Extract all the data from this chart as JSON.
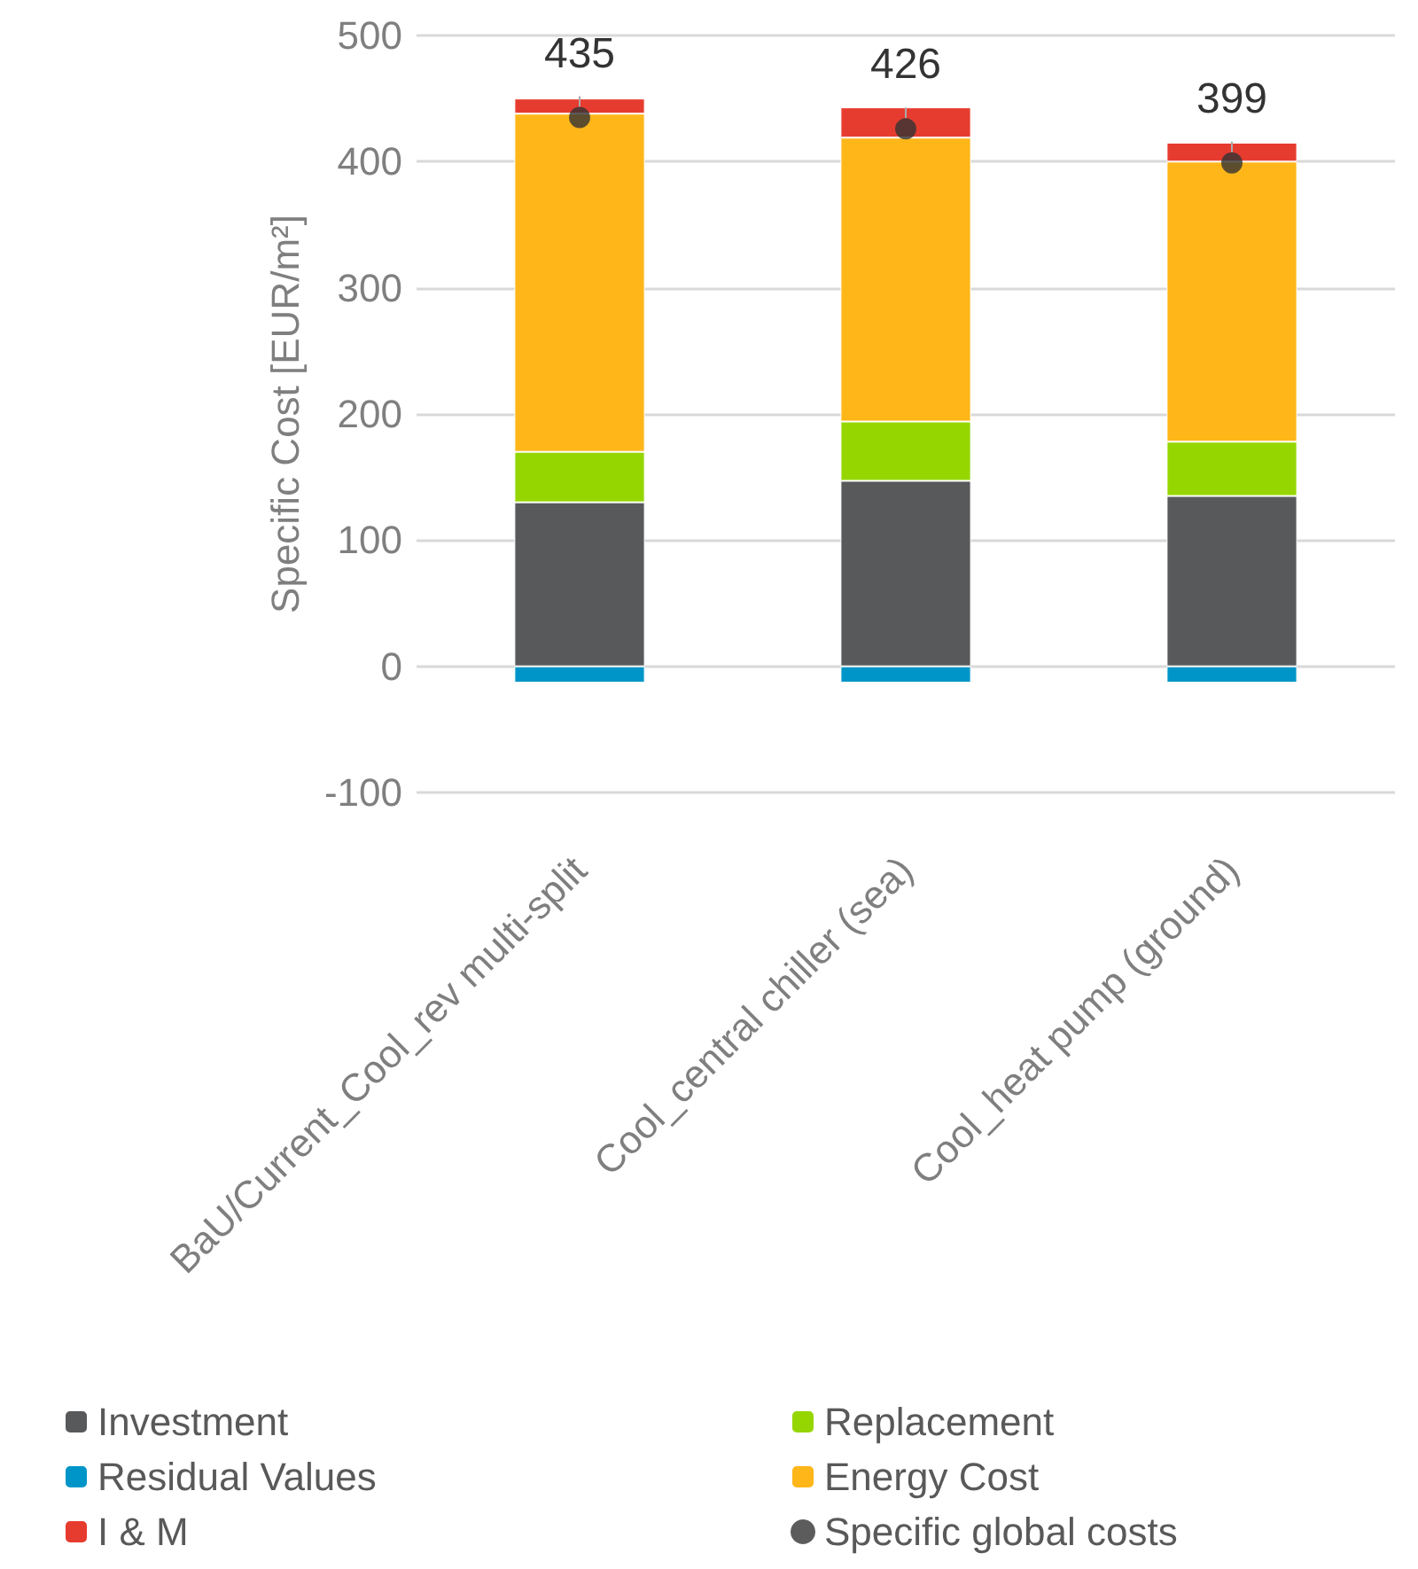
{
  "chart_data": {
    "type": "bar",
    "stacked": true,
    "ylabel": "Specific Cost [EUR/m²]",
    "categories": [
      "BaU/Current_Cool_rev multi-split",
      "Cool_central chiller (sea)",
      "Cool_heat pump (ground)"
    ],
    "series": [
      {
        "name": "Investment",
        "color": "#58595b",
        "values": [
          130,
          147,
          135
        ]
      },
      {
        "name": "Replacement",
        "color": "#95d600",
        "values": [
          40,
          47,
          43
        ]
      },
      {
        "name": "Energy Cost",
        "color": "#ffb619",
        "values": [
          268,
          225,
          222
        ]
      },
      {
        "name": "I & M",
        "color": "#e63c2f",
        "values": [
          12,
          24,
          15
        ]
      },
      {
        "name": "Residual Values",
        "color": "#0095c8",
        "values": [
          -13,
          -13,
          -13
        ]
      },
      {
        "name": "Specific global costs",
        "type": "scatter",
        "marker": "circle",
        "color": "#333333",
        "x": [
          "BaU/Current_Cool_rev multi-split",
          "Cool_central chiller (sea)",
          "Cool_heat pump (ground)"
        ],
        "values": [
          435,
          426,
          399
        ],
        "data_labels": true
      }
    ],
    "ylim": [
      -100,
      500
    ],
    "yticks": [
      -100,
      0,
      100,
      200,
      300,
      400,
      500
    ],
    "grid": "y",
    "legend": "bottom"
  }
}
